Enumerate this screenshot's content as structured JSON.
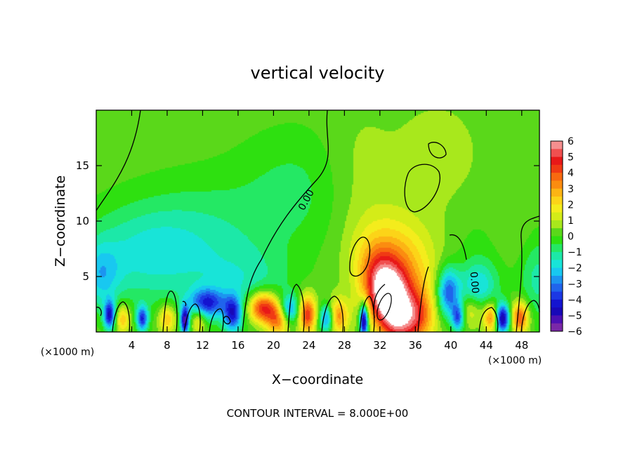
{
  "chart_data": {
    "type": "heatmap",
    "title": "vertical velocity",
    "xlabel": "X−coordinate",
    "ylabel": "Z−coordinate",
    "x_unit_left": "(×1000 m)",
    "x_unit_right": "(×1000 m)",
    "xlim": [
      0,
      50
    ],
    "ylim": [
      0,
      20
    ],
    "x_ticks": [
      4,
      8,
      12,
      16,
      20,
      24,
      28,
      32,
      36,
      40,
      44,
      48
    ],
    "y_ticks": [
      5,
      10,
      15
    ],
    "contour_label": "0.00",
    "footer": "CONTOUR INTERVAL = 8.000E+00",
    "colorbar": {
      "ticks": [
        "6",
        "5",
        "4",
        "3",
        "2",
        "1",
        "0",
        "−1",
        "−2",
        "−3",
        "−4",
        "−5",
        "−6"
      ],
      "levels": [
        {
          "min": 5.5,
          "max": 6,
          "color": "#f58f8f"
        },
        {
          "min": 5,
          "max": 5.5,
          "color": "#f05050"
        },
        {
          "min": 4.5,
          "max": 5,
          "color": "#e81818"
        },
        {
          "min": 4,
          "max": 4.5,
          "color": "#f03a14"
        },
        {
          "min": 3.5,
          "max": 4,
          "color": "#f86a10"
        },
        {
          "min": 3,
          "max": 3.5,
          "color": "#fb8c10"
        },
        {
          "min": 2.5,
          "max": 3,
          "color": "#fcb414"
        },
        {
          "min": 2,
          "max": 2.5,
          "color": "#fcd418"
        },
        {
          "min": 1.5,
          "max": 2,
          "color": "#f4ec1c"
        },
        {
          "min": 1,
          "max": 1.5,
          "color": "#d4ec18"
        },
        {
          "min": 0.5,
          "max": 1,
          "color": "#a8e81c"
        },
        {
          "min": 0,
          "max": 0.5,
          "color": "#5ad81a"
        },
        {
          "min": -0.5,
          "max": 0,
          "color": "#2ee010"
        },
        {
          "min": -1,
          "max": -0.5,
          "color": "#24e864"
        },
        {
          "min": -1.5,
          "max": -1,
          "color": "#1ce8a8"
        },
        {
          "min": -2,
          "max": -1.5,
          "color": "#18e4d8"
        },
        {
          "min": -2.5,
          "max": -2,
          "color": "#18c8f0"
        },
        {
          "min": -3,
          "max": -2.5,
          "color": "#1c94f0"
        },
        {
          "min": -3.5,
          "max": -3,
          "color": "#2064ec"
        },
        {
          "min": -4,
          "max": -3.5,
          "color": "#1c38e4"
        },
        {
          "min": -4.5,
          "max": -4,
          "color": "#1414d0"
        },
        {
          "min": -5,
          "max": -4.5,
          "color": "#1808b8"
        },
        {
          "min": -5.5,
          "max": -5,
          "color": "#4c10b4"
        },
        {
          "min": -6,
          "max": -5.5,
          "color": "#7a28a8"
        }
      ]
    },
    "features": [
      {
        "x": 33.2,
        "z": 2.6,
        "w": -0.3,
        "sx": 1.7,
        "sz": 2.6,
        "value": 6.5
      },
      {
        "x": 34.0,
        "z": 5.0,
        "w": -0.25,
        "sx": 2.7,
        "sz": 3.1,
        "value": 2.5
      },
      {
        "x": 34.3,
        "z": 7.5,
        "w": 0,
        "sx": 3.5,
        "sz": 3.0,
        "value": 0.7
      },
      {
        "x": 18.8,
        "z": 2.2,
        "w": 0,
        "sx": 1.2,
        "sz": 1.0,
        "value": 5.0
      },
      {
        "x": 23.8,
        "z": 1.6,
        "w": 0,
        "sx": 0.7,
        "sz": 1.2,
        "value": 4.3
      },
      {
        "x": 20.5,
        "z": 1.0,
        "w": 0,
        "sx": 0.9,
        "sz": 1.0,
        "value": 3.2
      },
      {
        "x": 47.8,
        "z": 1.3,
        "w": 0,
        "sx": 0.7,
        "sz": 1.0,
        "value": 4.0
      },
      {
        "x": 44.6,
        "z": 1.3,
        "w": 0,
        "sx": 0.6,
        "sz": 0.9,
        "value": 3.5
      },
      {
        "x": 27.3,
        "z": 1.4,
        "w": 0,
        "sx": 0.8,
        "sz": 1.1,
        "value": 3.0
      },
      {
        "x": 3.0,
        "z": 1.2,
        "w": 0,
        "sx": 0.6,
        "sz": 0.9,
        "value": 2.4
      },
      {
        "x": 8.0,
        "z": 1.2,
        "w": 0,
        "sx": 0.7,
        "sz": 0.9,
        "value": 2.5
      },
      {
        "x": 11.5,
        "z": 1.0,
        "w": 0,
        "sx": 0.6,
        "sz": 0.8,
        "value": 2.0
      },
      {
        "x": 36.5,
        "z": 1.5,
        "w": 0,
        "sx": 1.2,
        "sz": 1.5,
        "value": 2.0
      },
      {
        "x": 42.3,
        "z": 2.0,
        "w": 0,
        "sx": 1.0,
        "sz": 1.0,
        "value": 1.5
      },
      {
        "x": 30.2,
        "z": 1.0,
        "w": 0,
        "sx": 0.35,
        "sz": 1.1,
        "value": -6.0
      },
      {
        "x": 45.8,
        "z": 1.2,
        "w": 0,
        "sx": 0.6,
        "sz": 0.9,
        "value": -5.6
      },
      {
        "x": 10.0,
        "z": 1.0,
        "w": 0,
        "sx": 0.35,
        "sz": 0.9,
        "value": -5.2
      },
      {
        "x": 1.5,
        "z": 1.5,
        "w": 0,
        "sx": 0.45,
        "sz": 0.9,
        "value": -4.5
      },
      {
        "x": 5.2,
        "z": 1.2,
        "w": 0,
        "sx": 0.45,
        "sz": 0.8,
        "value": -4.0
      },
      {
        "x": 12.5,
        "z": 2.6,
        "w": 0,
        "sx": 1.4,
        "sz": 0.9,
        "value": -3.6
      },
      {
        "x": 15.4,
        "z": 1.6,
        "w": 0,
        "sx": 0.7,
        "sz": 1.1,
        "value": -3.8
      },
      {
        "x": 26.0,
        "z": 1.2,
        "w": 0,
        "sx": 0.6,
        "sz": 0.9,
        "value": -3.5
      },
      {
        "x": 21.8,
        "z": 2.0,
        "w": 0,
        "sx": 0.8,
        "sz": 0.9,
        "value": -3.0
      },
      {
        "x": 39.7,
        "z": 3.5,
        "w": 0,
        "sx": 0.9,
        "sz": 1.6,
        "value": -3.8
      },
      {
        "x": 40.8,
        "z": 1.3,
        "w": 0,
        "sx": 0.5,
        "sz": 0.9,
        "value": -3.5
      },
      {
        "x": 43.0,
        "z": 4.0,
        "w": 0,
        "sx": 1.5,
        "sz": 1.5,
        "value": -2.0
      },
      {
        "x": 4.5,
        "z": 7.0,
        "w": 0,
        "sx": 5.0,
        "sz": 3.0,
        "value": -1.3
      },
      {
        "x": 11.0,
        "z": 8.0,
        "w": 0.1,
        "sx": 6.0,
        "sz": 4.0,
        "value": -1.3
      },
      {
        "x": 17.0,
        "z": 4.0,
        "w": 0,
        "sx": 3.5,
        "sz": 2.5,
        "value": -1.2
      },
      {
        "x": 23.0,
        "z": 13.0,
        "w": 0,
        "sx": 5.0,
        "sz": 4.0,
        "value": -0.9
      },
      {
        "x": 0.5,
        "z": 5.0,
        "w": 0,
        "sx": 1.5,
        "sz": 2.0,
        "value": -1.8
      },
      {
        "x": 49.8,
        "z": 5.0,
        "w": 0,
        "sx": 1.5,
        "sz": 3.0,
        "value": -1.5
      },
      {
        "x": 44.0,
        "z": 7.0,
        "w": 0,
        "sx": 2.5,
        "sz": 3.0,
        "value": -0.8
      },
      {
        "x": 29.5,
        "z": 14.0,
        "w": 0,
        "sx": 3.0,
        "sz": 4.0,
        "value": 0.6
      },
      {
        "x": 38.5,
        "z": 16.0,
        "w": 0,
        "sx": 3.0,
        "sz": 3.0,
        "value": 0.5
      },
      {
        "x": 46.5,
        "z": 8.5,
        "w": 0,
        "sx": 2.5,
        "sz": 2.5,
        "value": 0.6
      }
    ]
  }
}
